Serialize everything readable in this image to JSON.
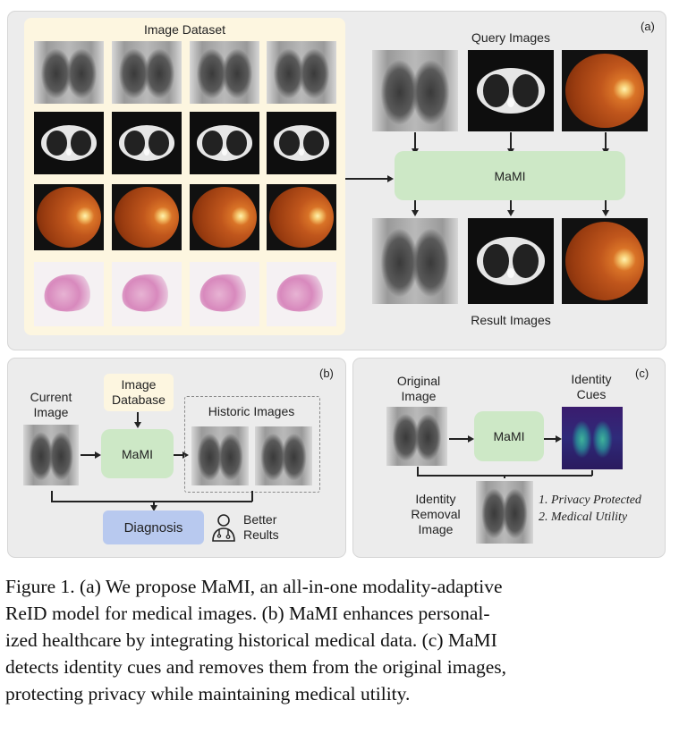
{
  "panel_a": {
    "tag": "(a)",
    "dataset_title": "Image Dataset",
    "query_title": "Query Images",
    "model_label": "MaMI",
    "result_title": "Result Images"
  },
  "panel_b": {
    "tag": "(b)",
    "current_image": "Current\nImage",
    "image_database": "Image\nDatabase",
    "model_label": "MaMI",
    "historic_images": "Historic Images",
    "diagnosis": "Diagnosis",
    "better_results": "Better\nReults",
    "icons": [
      "doctor-icon"
    ]
  },
  "panel_c": {
    "tag": "(c)",
    "original_image": "Original\nImage",
    "model_label": "MaMI",
    "identity_cues": "Identity\nCues",
    "identity_removal": "Identity\nRemoval\nImage",
    "outcomes": [
      "1. Privacy Protected",
      "2. Medical Utility"
    ]
  },
  "caption": {
    "lines": [
      "Figure 1. (a) We propose MaMI, an all-in-one modality-adaptive",
      "ReID model for medical images.  (b) MaMI enhances personal-",
      "ized healthcare by integrating historical medical data.  (c) MaMI",
      "detects identity cues and removes them from the original images,",
      "protecting privacy while maintaining medical utility."
    ]
  },
  "colors": {
    "panel_bg": "#ececec",
    "dataset_bg": "#fdf6e0",
    "model_box": "#cde8c6",
    "diagnosis_box": "#b8c9ef"
  }
}
